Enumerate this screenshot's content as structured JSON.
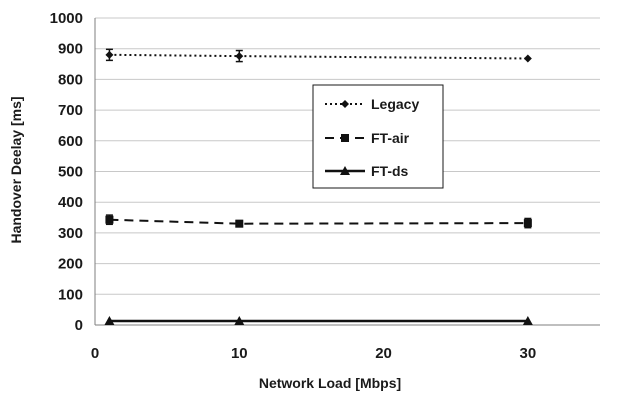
{
  "chart_data": {
    "type": "line",
    "title": "",
    "xlabel": "Network Load [Mbps]",
    "ylabel": "Handover Deelay [ms]",
    "xlim": [
      0,
      35
    ],
    "ylim": [
      0,
      1000
    ],
    "x_ticks": [
      0,
      10,
      20,
      30
    ],
    "y_ticks": [
      0,
      100,
      200,
      300,
      400,
      500,
      600,
      700,
      800,
      900,
      1000
    ],
    "grid": "horizontal",
    "legend_position": "center-right",
    "series": [
      {
        "name": "Legacy",
        "style": "dotted",
        "marker": "diamond",
        "x": [
          1,
          10,
          30
        ],
        "y": [
          880,
          876,
          868
        ],
        "error": [
          18,
          18,
          0
        ]
      },
      {
        "name": "FT-air",
        "style": "dashed",
        "marker": "square",
        "x": [
          1,
          10,
          30
        ],
        "y": [
          343,
          330,
          332
        ],
        "error": [
          15,
          10,
          15
        ]
      },
      {
        "name": "FT-ds",
        "style": "solid",
        "marker": "triangle",
        "x": [
          1,
          10,
          30
        ],
        "y": [
          13,
          13,
          13
        ],
        "error": [
          0,
          0,
          0
        ]
      }
    ]
  }
}
